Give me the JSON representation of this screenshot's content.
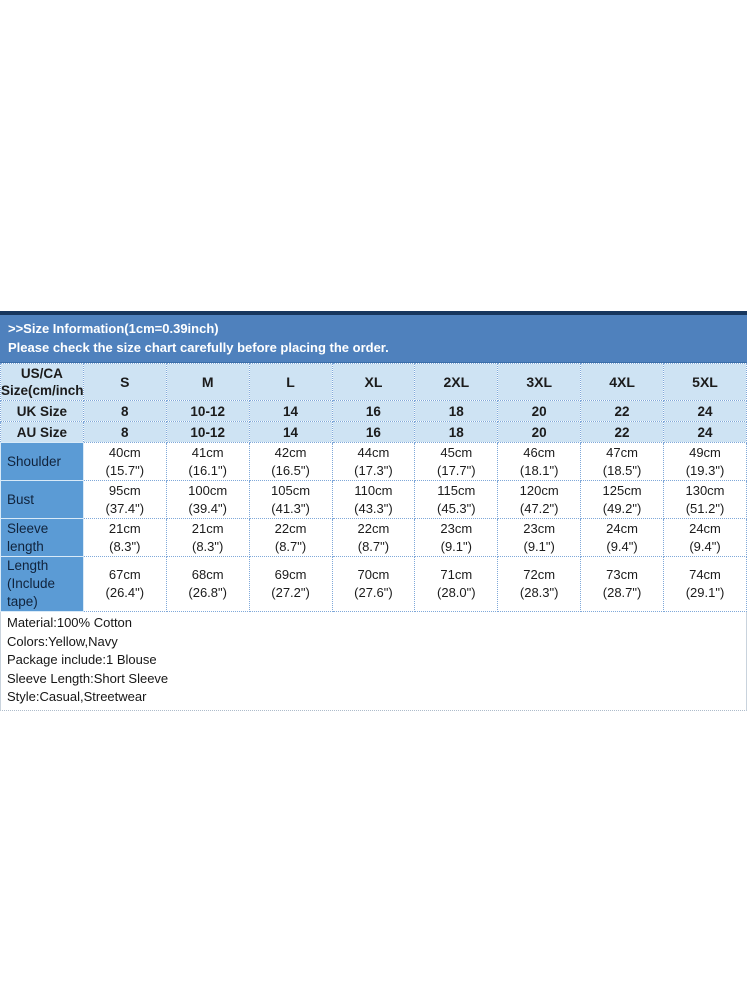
{
  "banner": {
    "line1": ">>Size Information(1cm=0.39inch)",
    "line2": "Please check the size chart carefully before placing the order."
  },
  "table": {
    "corner": {
      "line1": "US/CA",
      "line2": "Size(cm/inch)"
    },
    "size_columns": [
      "S",
      "M",
      "L",
      "XL",
      "2XL",
      "3XL",
      "4XL",
      "5XL"
    ],
    "size_rows": [
      {
        "label": "UK Size",
        "values": [
          "8",
          "10-12",
          "14",
          "16",
          "18",
          "20",
          "22",
          "24"
        ]
      },
      {
        "label": "AU Size",
        "values": [
          "8",
          "10-12",
          "14",
          "16",
          "18",
          "20",
          "22",
          "24"
        ]
      }
    ],
    "measurement_rows": [
      {
        "label": "Shoulder",
        "cm": [
          "40cm",
          "41cm",
          "42cm",
          "44cm",
          "45cm",
          "46cm",
          "47cm",
          "49cm"
        ],
        "inch": [
          "(15.7\")",
          "(16.1\")",
          "(16.5\")",
          "(17.3\")",
          "(17.7\")",
          "(18.1\")",
          "(18.5\")",
          "(19.3\")"
        ]
      },
      {
        "label": "Bust",
        "cm": [
          "95cm",
          "100cm",
          "105cm",
          "110cm",
          "115cm",
          "120cm",
          "125cm",
          "130cm"
        ],
        "inch": [
          "(37.4\")",
          "(39.4\")",
          "(41.3\")",
          "(43.3\")",
          "(45.3\")",
          "(47.2\")",
          "(49.2\")",
          "(51.2\")"
        ]
      },
      {
        "label": "Sleeve length",
        "cm": [
          "21cm",
          "21cm",
          "22cm",
          "22cm",
          "23cm",
          "23cm",
          "24cm",
          "24cm"
        ],
        "inch": [
          "(8.3\")",
          "(8.3\")",
          "(8.7\")",
          "(8.7\")",
          "(9.1\")",
          "(9.1\")",
          "(9.4\")",
          "(9.4\")"
        ]
      },
      {
        "label": "Length\n(Include tape)",
        "cm": [
          "67cm",
          "68cm",
          "69cm",
          "70cm",
          "71cm",
          "72cm",
          "73cm",
          "74cm"
        ],
        "inch": [
          "(26.4\")",
          "(26.8\")",
          "(27.2\")",
          "(27.6\")",
          "(28.0\")",
          "(28.3\")",
          "(28.7\")",
          "(29.1\")"
        ]
      }
    ]
  },
  "notes": [
    "Material:100% Cotton",
    "Colors:Yellow,Navy",
    "Package include:1 Blouse",
    "Sleeve Length:Short Sleeve",
    "Style:Casual,Streetwear"
  ],
  "colors": {
    "banner_bg": "#4f81bd",
    "banner_top_border": "#17365d",
    "banner_text": "#ffffff",
    "header_cell_bg": "#cee3f3",
    "label_cell_bg": "#5b9bd5",
    "cell_border_dotted": "#7fa8d9",
    "body_text": "#1b1b1b"
  }
}
